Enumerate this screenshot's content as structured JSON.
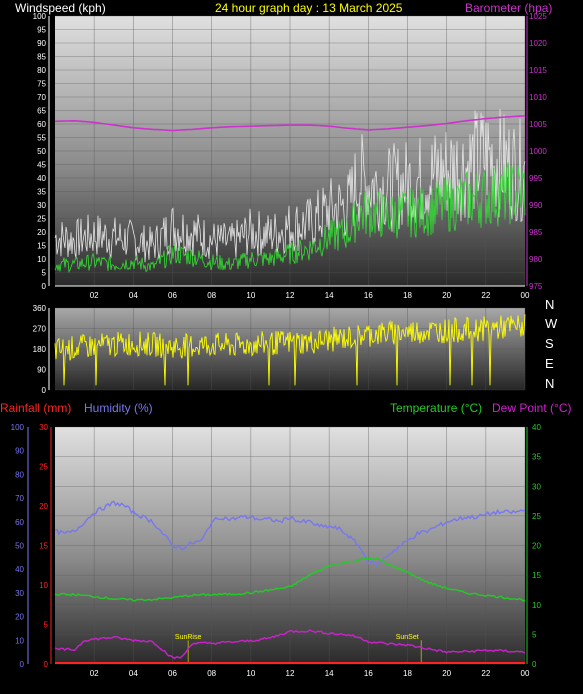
{
  "header": {
    "title": "24 hour graph day : 13 March 2025",
    "wind_label": "Windspeed (kph)",
    "baro_label": "Barometer (hpa)"
  },
  "lower_header": {
    "rain_label": "Rainfall (mm)",
    "hum_label": "Humidity (%)",
    "temp_label": "Temperature (°C)",
    "dew_label": "Dew Point (°C)"
  },
  "colors": {
    "wind_title": "#ffffff",
    "title": "#ffff00",
    "baro": "#cc33cc",
    "gust": "#e6e6e6",
    "wind": "#33dd33",
    "direction": "#ffff00",
    "rain": "#ff2222",
    "humidity": "#7777ee",
    "temperature": "#22cc22",
    "dewpoint": "#cc22cc",
    "sunmarker": "#ffff00"
  },
  "chart_data": [
    {
      "type": "line",
      "name": "wind-baro",
      "x_ticks": [
        "02",
        "04",
        "06",
        "08",
        "10",
        "12",
        "14",
        "16",
        "18",
        "20",
        "22",
        "00"
      ],
      "y_left_ticks": [
        "0",
        "5",
        "10",
        "15",
        "20",
        "25",
        "30",
        "35",
        "40",
        "45",
        "50",
        "55",
        "60",
        "65",
        "70",
        "75",
        "80",
        "85",
        "90",
        "95",
        "100"
      ],
      "y_right_ticks": [
        "975",
        "980",
        "985",
        "990",
        "995",
        "1000",
        "1005",
        "1010",
        "1015",
        "1020",
        "1025"
      ],
      "ylim_left": [
        0,
        100
      ],
      "ylim_right": [
        975,
        1025
      ],
      "xlim_hours": [
        0,
        24
      ],
      "gust": {
        "hours": [
          0,
          1,
          2,
          3,
          4,
          5,
          6,
          7,
          8,
          9,
          10,
          11,
          12,
          13,
          14,
          15,
          15.5,
          16,
          17,
          18,
          19,
          20,
          21,
          22,
          23,
          24
        ],
        "values": [
          18,
          17,
          19,
          18,
          17,
          15,
          22,
          20,
          17,
          16,
          20,
          19,
          22,
          23,
          28,
          30,
          40,
          38,
          36,
          38,
          40,
          43,
          44,
          48,
          45,
          42
        ]
      },
      "wind": {
        "hours": [
          0,
          1,
          2,
          3,
          4,
          5,
          6,
          7,
          8,
          9,
          10,
          11,
          12,
          13,
          14,
          15,
          15.5,
          16,
          17,
          18,
          19,
          20,
          21,
          22,
          23,
          24
        ],
        "values": [
          8,
          8,
          9,
          8,
          9,
          7,
          12,
          11,
          9,
          8,
          10,
          10,
          12,
          14,
          18,
          20,
          27,
          27,
          26,
          27,
          28,
          30,
          32,
          33,
          34,
          36
        ]
      },
      "barometer": {
        "hours": [
          0,
          1,
          2,
          3,
          4,
          5,
          6,
          7,
          8,
          9,
          10,
          11,
          12,
          13,
          14,
          15,
          16,
          17,
          18,
          19,
          20,
          21,
          22,
          23,
          24
        ],
        "values": [
          1005.5,
          1005.6,
          1005.3,
          1004.8,
          1004.3,
          1004,
          1003.8,
          1004,
          1004.3,
          1004.5,
          1004.6,
          1004.7,
          1004.8,
          1004.8,
          1004.6,
          1004.2,
          1003.9,
          1004.1,
          1004.4,
          1004.7,
          1005.1,
          1005.6,
          1006,
          1006.3,
          1006.5
        ]
      }
    },
    {
      "type": "line",
      "name": "wind-direction",
      "y_left_ticks": [
        "0",
        "90",
        "180",
        "270",
        "360"
      ],
      "y_right_ticks": [
        "N",
        "W",
        "S",
        "E",
        "N"
      ],
      "ylim": [
        0,
        360
      ],
      "direction": {
        "hours": [
          0,
          1,
          2,
          3,
          4,
          5,
          6,
          7,
          8,
          9,
          10,
          11,
          12,
          13,
          14,
          15,
          16,
          17,
          18,
          19,
          20,
          21,
          22,
          23,
          24
        ],
        "values": [
          175,
          185,
          195,
          200,
          205,
          200,
          190,
          195,
          200,
          195,
          200,
          205,
          210,
          210,
          220,
          230,
          245,
          250,
          255,
          260,
          260,
          265,
          270,
          275,
          280
        ]
      }
    },
    {
      "type": "line",
      "name": "temp-humidity-rain",
      "x_ticks": [
        "02",
        "04",
        "06",
        "08",
        "10",
        "12",
        "14",
        "16",
        "18",
        "20",
        "22",
        "00"
      ],
      "y_rain_ticks": [
        "0",
        "5",
        "10",
        "15",
        "20",
        "25",
        "30"
      ],
      "y_hum_ticks": [
        "0",
        "10",
        "20",
        "30",
        "40",
        "50",
        "60",
        "70",
        "80",
        "90",
        "100"
      ],
      "y_temp_ticks": [
        "0",
        "5",
        "10",
        "15",
        "20",
        "25",
        "30",
        "35",
        "40"
      ],
      "ylim_rain": [
        0,
        30
      ],
      "ylim_hum": [
        0,
        100
      ],
      "ylim_temp": [
        0,
        40
      ],
      "annotations": [
        {
          "label": "SunRise",
          "hour": 6.8
        },
        {
          "label": "SunSet",
          "hour": 18.7
        }
      ],
      "humidity": {
        "hours": [
          0,
          0.5,
          1,
          1.5,
          2,
          2.5,
          3,
          3.5,
          4,
          4.5,
          5,
          5.5,
          6,
          6.5,
          7,
          7.5,
          8,
          8.5,
          9,
          9.5,
          10,
          10.5,
          11,
          11.5,
          12,
          12.5,
          13,
          13.5,
          14,
          14.5,
          15,
          15.5,
          16,
          16.5,
          17,
          17.5,
          18,
          18.5,
          19,
          19.5,
          20,
          20.5,
          21,
          21.5,
          22,
          22.5,
          23,
          23.5,
          24
        ],
        "values": [
          56,
          55,
          56,
          60,
          64,
          66,
          68,
          67,
          64,
          62,
          60,
          55,
          50,
          49,
          51,
          52,
          60,
          62,
          61,
          62,
          62,
          61,
          61,
          60,
          62,
          60,
          60,
          58,
          58,
          57,
          54,
          50,
          43,
          42,
          46,
          49,
          52,
          55,
          56,
          58,
          60,
          61,
          62,
          62,
          63,
          64,
          64,
          64,
          65
        ]
      },
      "temperature": {
        "hours": [
          0,
          1,
          2,
          3,
          4,
          5,
          6,
          7,
          8,
          9,
          10,
          11,
          12,
          13,
          14,
          15,
          15.5,
          16,
          16.5,
          17,
          18,
          19,
          20,
          21,
          22,
          23,
          24
        ],
        "values": [
          11.8,
          11.7,
          11.4,
          11,
          10.8,
          10.9,
          11.2,
          11.6,
          11.7,
          11.8,
          12,
          12.5,
          13,
          15,
          16.6,
          17.2,
          17.6,
          17.8,
          17.7,
          16.8,
          15.5,
          13.8,
          12.8,
          12,
          11.6,
          11.2,
          10.8
        ]
      },
      "dewpoint": {
        "hours": [
          0,
          1,
          1.5,
          2,
          3,
          4,
          5,
          6,
          6.5,
          7,
          8,
          9,
          10,
          11,
          12,
          13,
          14,
          15,
          15.5,
          16,
          17,
          18,
          19,
          20,
          21,
          22,
          23,
          24
        ],
        "values": [
          2.5,
          2.4,
          4,
          4.2,
          4.5,
          4,
          3.8,
          1,
          1.2,
          3.5,
          3.5,
          3.7,
          3.9,
          4.4,
          5.5,
          5.6,
          5.2,
          4.9,
          4.5,
          3.8,
          3.4,
          3.2,
          2.6,
          2,
          2.1,
          2.3,
          2.2,
          2
        ]
      },
      "rain": {
        "hours": [
          0,
          24
        ],
        "values": [
          0,
          0
        ]
      }
    }
  ]
}
